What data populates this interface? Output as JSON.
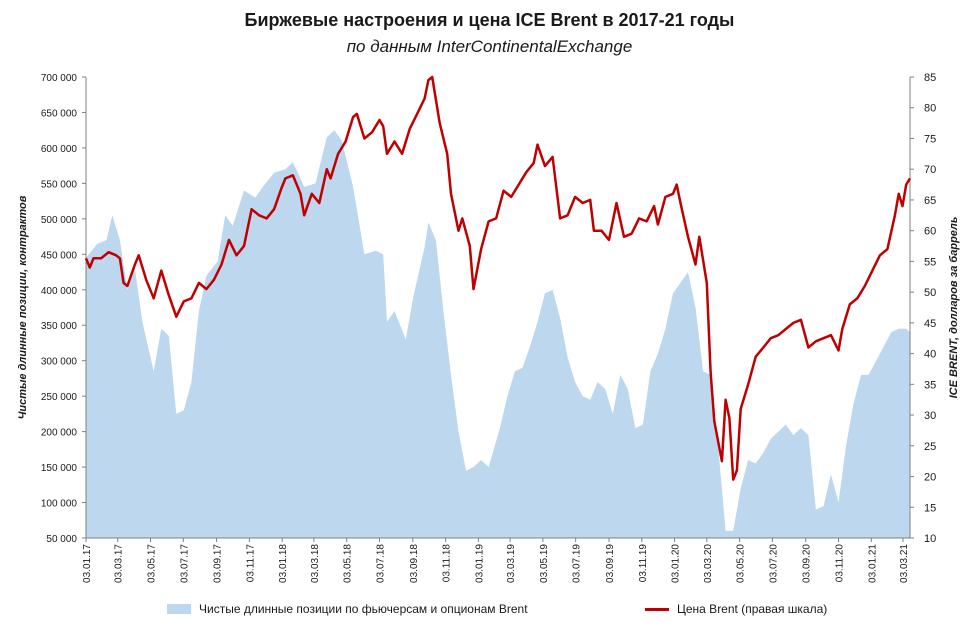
{
  "title": "Биржевые настроения и цена ICE Brent в 2017-21 годы",
  "subtitle": "по данным InterContinentalExchange",
  "chart_data": {
    "type": "area+line",
    "ylabel_left": "Чистые длинные позиции, контрактов",
    "ylabel_right": "ICE BRENT, долларов за баррель",
    "ylim_left": [
      50000,
      700000
    ],
    "yticks_left": [
      "50 000",
      "100 000",
      "150 000",
      "200 000",
      "250 000",
      "300 000",
      "350 000",
      "400 000",
      "450 000",
      "500 000",
      "550 000",
      "600 000",
      "650 000",
      "700 000"
    ],
    "ylim_right": [
      10,
      85
    ],
    "yticks_right": [
      "10",
      "15",
      "20",
      "25",
      "30",
      "35",
      "40",
      "45",
      "50",
      "55",
      "60",
      "65",
      "70",
      "75",
      "80",
      "85"
    ],
    "x_range": [
      "2017-01-03",
      "2021-03-16"
    ],
    "x_ticks": [
      "03.01.17",
      "03.03.17",
      "03.05.17",
      "03.07.17",
      "03.09.17",
      "03.11.17",
      "03.01.18",
      "03.03.18",
      "03.05.18",
      "03.07.18",
      "03.09.18",
      "03.11.18",
      "03.01.19",
      "03.03.19",
      "03.05.19",
      "03.07.19",
      "03.09.19",
      "03.11.19",
      "03.01.20",
      "03.03.20",
      "03.05.20",
      "03.07.20",
      "03.09.20",
      "03.11.20",
      "03.01.21",
      "03.03.21"
    ],
    "series": [
      {
        "name": "Чистые длинные позиции по фьючерсам и опционам Brent",
        "type": "area",
        "axis": "left",
        "color": "#bdd7ee",
        "points": [
          [
            "2017-01-03",
            445000
          ],
          [
            "2017-01-24",
            465000
          ],
          [
            "2017-02-10",
            470000
          ],
          [
            "2017-02-21",
            505000
          ],
          [
            "2017-03-07",
            470000
          ],
          [
            "2017-03-21",
            400000
          ],
          [
            "2017-04-04",
            430000
          ],
          [
            "2017-04-18",
            355000
          ],
          [
            "2017-05-09",
            285000
          ],
          [
            "2017-05-23",
            345000
          ],
          [
            "2017-06-06",
            335000
          ],
          [
            "2017-06-20",
            225000
          ],
          [
            "2017-07-04",
            230000
          ],
          [
            "2017-07-18",
            270000
          ],
          [
            "2017-08-01",
            370000
          ],
          [
            "2017-08-15",
            420000
          ],
          [
            "2017-09-05",
            440000
          ],
          [
            "2017-09-19",
            505000
          ],
          [
            "2017-10-03",
            490000
          ],
          [
            "2017-10-24",
            540000
          ],
          [
            "2017-11-14",
            530000
          ],
          [
            "2017-11-28",
            545000
          ],
          [
            "2017-12-19",
            565000
          ],
          [
            "2018-01-09",
            570000
          ],
          [
            "2018-01-23",
            580000
          ],
          [
            "2018-02-13",
            545000
          ],
          [
            "2018-03-06",
            550000
          ],
          [
            "2018-03-27",
            615000
          ],
          [
            "2018-04-10",
            625000
          ],
          [
            "2018-04-24",
            610000
          ],
          [
            "2018-05-15",
            545000
          ],
          [
            "2018-06-05",
            450000
          ],
          [
            "2018-06-26",
            455000
          ],
          [
            "2018-07-10",
            450000
          ],
          [
            "2018-07-17",
            355000
          ],
          [
            "2018-07-31",
            370000
          ],
          [
            "2018-08-21",
            330000
          ],
          [
            "2018-09-04",
            390000
          ],
          [
            "2018-09-25",
            460000
          ],
          [
            "2018-10-02",
            495000
          ],
          [
            "2018-10-16",
            470000
          ],
          [
            "2018-10-30",
            370000
          ],
          [
            "2018-11-13",
            280000
          ],
          [
            "2018-11-27",
            200000
          ],
          [
            "2018-12-11",
            145000
          ],
          [
            "2018-12-25",
            150000
          ],
          [
            "2019-01-08",
            160000
          ],
          [
            "2019-01-22",
            150000
          ],
          [
            "2019-02-12",
            205000
          ],
          [
            "2019-02-26",
            250000
          ],
          [
            "2019-03-12",
            285000
          ],
          [
            "2019-03-26",
            290000
          ],
          [
            "2019-04-09",
            320000
          ],
          [
            "2019-04-23",
            355000
          ],
          [
            "2019-05-07",
            395000
          ],
          [
            "2019-05-21",
            400000
          ],
          [
            "2019-06-04",
            360000
          ],
          [
            "2019-06-18",
            305000
          ],
          [
            "2019-07-02",
            270000
          ],
          [
            "2019-07-16",
            250000
          ],
          [
            "2019-07-30",
            245000
          ],
          [
            "2019-08-13",
            270000
          ],
          [
            "2019-08-27",
            260000
          ],
          [
            "2019-09-10",
            225000
          ],
          [
            "2019-09-24",
            280000
          ],
          [
            "2019-10-08",
            260000
          ],
          [
            "2019-10-22",
            205000
          ],
          [
            "2019-11-05",
            210000
          ],
          [
            "2019-11-19",
            285000
          ],
          [
            "2019-12-03",
            310000
          ],
          [
            "2019-12-17",
            345000
          ],
          [
            "2019-12-31",
            395000
          ],
          [
            "2020-01-14",
            410000
          ],
          [
            "2020-01-28",
            425000
          ],
          [
            "2020-02-11",
            375000
          ],
          [
            "2020-02-25",
            285000
          ],
          [
            "2020-03-10",
            280000
          ],
          [
            "2020-03-24",
            180000
          ],
          [
            "2020-04-07",
            60000
          ],
          [
            "2020-04-21",
            60000
          ],
          [
            "2020-05-05",
            120000
          ],
          [
            "2020-05-19",
            160000
          ],
          [
            "2020-06-02",
            155000
          ],
          [
            "2020-06-16",
            170000
          ],
          [
            "2020-06-30",
            190000
          ],
          [
            "2020-07-14",
            200000
          ],
          [
            "2020-07-28",
            210000
          ],
          [
            "2020-08-11",
            195000
          ],
          [
            "2020-08-25",
            205000
          ],
          [
            "2020-09-08",
            195000
          ],
          [
            "2020-09-22",
            90000
          ],
          [
            "2020-10-06",
            95000
          ],
          [
            "2020-10-20",
            140000
          ],
          [
            "2020-11-03",
            100000
          ],
          [
            "2020-11-17",
            180000
          ],
          [
            "2020-12-01",
            240000
          ],
          [
            "2020-12-15",
            280000
          ],
          [
            "2020-12-29",
            280000
          ],
          [
            "2021-01-12",
            300000
          ],
          [
            "2021-01-26",
            320000
          ],
          [
            "2021-02-09",
            340000
          ],
          [
            "2021-02-23",
            345000
          ],
          [
            "2021-03-09",
            345000
          ],
          [
            "2021-03-16",
            340000
          ]
        ]
      },
      {
        "name": "Цена Brent (правая шкала)",
        "type": "line",
        "axis": "right",
        "color": "#c00000",
        "points": [
          [
            "2017-01-03",
            55.5
          ],
          [
            "2017-01-10",
            54.0
          ],
          [
            "2017-01-17",
            55.5
          ],
          [
            "2017-01-31",
            55.5
          ],
          [
            "2017-02-14",
            56.5
          ],
          [
            "2017-02-28",
            56.0
          ],
          [
            "2017-03-07",
            55.5
          ],
          [
            "2017-03-14",
            51.5
          ],
          [
            "2017-03-21",
            51.0
          ],
          [
            "2017-04-04",
            54.5
          ],
          [
            "2017-04-11",
            56.0
          ],
          [
            "2017-04-25",
            52.0
          ],
          [
            "2017-05-09",
            49.0
          ],
          [
            "2017-05-23",
            53.5
          ],
          [
            "2017-06-06",
            49.5
          ],
          [
            "2017-06-20",
            46.0
          ],
          [
            "2017-07-04",
            48.5
          ],
          [
            "2017-07-18",
            49.0
          ],
          [
            "2017-08-01",
            51.5
          ],
          [
            "2017-08-15",
            50.5
          ],
          [
            "2017-08-29",
            52.0
          ],
          [
            "2017-09-12",
            54.5
          ],
          [
            "2017-09-26",
            58.5
          ],
          [
            "2017-10-10",
            56.0
          ],
          [
            "2017-10-24",
            57.5
          ],
          [
            "2017-11-07",
            63.5
          ],
          [
            "2017-11-21",
            62.5
          ],
          [
            "2017-12-05",
            62.0
          ],
          [
            "2017-12-19",
            63.5
          ],
          [
            "2018-01-02",
            67.0
          ],
          [
            "2018-01-09",
            68.5
          ],
          [
            "2018-01-23",
            69.0
          ],
          [
            "2018-02-06",
            66.0
          ],
          [
            "2018-02-13",
            62.5
          ],
          [
            "2018-02-27",
            66.0
          ],
          [
            "2018-03-13",
            64.5
          ],
          [
            "2018-03-27",
            70.0
          ],
          [
            "2018-04-03",
            68.5
          ],
          [
            "2018-04-17",
            72.5
          ],
          [
            "2018-05-01",
            74.5
          ],
          [
            "2018-05-15",
            78.5
          ],
          [
            "2018-05-22",
            79.0
          ],
          [
            "2018-06-05",
            75.0
          ],
          [
            "2018-06-19",
            76.0
          ],
          [
            "2018-07-03",
            78.0
          ],
          [
            "2018-07-10",
            77.0
          ],
          [
            "2018-07-17",
            72.5
          ],
          [
            "2018-07-31",
            74.5
          ],
          [
            "2018-08-14",
            72.5
          ],
          [
            "2018-08-28",
            76.5
          ],
          [
            "2018-09-11",
            79.0
          ],
          [
            "2018-09-25",
            81.5
          ],
          [
            "2018-10-02",
            84.5
          ],
          [
            "2018-10-09",
            85.0
          ],
          [
            "2018-10-23",
            77.5
          ],
          [
            "2018-11-06",
            72.5
          ],
          [
            "2018-11-13",
            66.0
          ],
          [
            "2018-11-27",
            60.0
          ],
          [
            "2018-12-04",
            62.0
          ],
          [
            "2018-12-18",
            57.5
          ],
          [
            "2018-12-25",
            50.5
          ],
          [
            "2019-01-08",
            57.0
          ],
          [
            "2019-01-22",
            61.5
          ],
          [
            "2019-02-05",
            62.0
          ],
          [
            "2019-02-19",
            66.5
          ],
          [
            "2019-03-05",
            65.5
          ],
          [
            "2019-03-19",
            67.5
          ],
          [
            "2019-04-02",
            69.5
          ],
          [
            "2019-04-16",
            71.0
          ],
          [
            "2019-04-23",
            74.0
          ],
          [
            "2019-05-07",
            70.5
          ],
          [
            "2019-05-21",
            72.0
          ],
          [
            "2019-06-04",
            62.0
          ],
          [
            "2019-06-18",
            62.5
          ],
          [
            "2019-07-02",
            65.5
          ],
          [
            "2019-07-16",
            64.5
          ],
          [
            "2019-07-30",
            65.0
          ],
          [
            "2019-08-06",
            60.0
          ],
          [
            "2019-08-20",
            60.0
          ],
          [
            "2019-09-03",
            58.5
          ],
          [
            "2019-09-17",
            64.5
          ],
          [
            "2019-10-01",
            59.0
          ],
          [
            "2019-10-15",
            59.5
          ],
          [
            "2019-10-29",
            62.0
          ],
          [
            "2019-11-12",
            61.5
          ],
          [
            "2019-11-26",
            64.0
          ],
          [
            "2019-12-03",
            61.0
          ],
          [
            "2019-12-17",
            65.5
          ],
          [
            "2019-12-31",
            66.0
          ],
          [
            "2020-01-07",
            67.5
          ],
          [
            "2020-01-14",
            64.5
          ],
          [
            "2020-01-28",
            59.0
          ],
          [
            "2020-02-11",
            54.5
          ],
          [
            "2020-02-18",
            59.0
          ],
          [
            "2020-03-03",
            51.5
          ],
          [
            "2020-03-10",
            37.0
          ],
          [
            "2020-03-17",
            29.0
          ],
          [
            "2020-03-31",
            22.5
          ],
          [
            "2020-04-07",
            32.5
          ],
          [
            "2020-04-14",
            29.5
          ],
          [
            "2020-04-21",
            19.5
          ],
          [
            "2020-04-28",
            21.0
          ],
          [
            "2020-05-05",
            31.0
          ],
          [
            "2020-05-19",
            35.0
          ],
          [
            "2020-06-02",
            39.5
          ],
          [
            "2020-06-16",
            41.0
          ],
          [
            "2020-06-30",
            42.5
          ],
          [
            "2020-07-14",
            43.0
          ],
          [
            "2020-07-28",
            44.0
          ],
          [
            "2020-08-11",
            45.0
          ],
          [
            "2020-08-25",
            45.5
          ],
          [
            "2020-09-08",
            41.0
          ],
          [
            "2020-09-22",
            42.0
          ],
          [
            "2020-10-06",
            42.5
          ],
          [
            "2020-10-20",
            43.0
          ],
          [
            "2020-11-03",
            40.5
          ],
          [
            "2020-11-10",
            44.0
          ],
          [
            "2020-11-24",
            48.0
          ],
          [
            "2020-12-08",
            49.0
          ],
          [
            "2020-12-22",
            51.0
          ],
          [
            "2021-01-05",
            53.5
          ],
          [
            "2021-01-19",
            56.0
          ],
          [
            "2021-02-02",
            57.0
          ],
          [
            "2021-02-16",
            62.5
          ],
          [
            "2021-02-23",
            66.0
          ],
          [
            "2021-03-02",
            64.0
          ],
          [
            "2021-03-09",
            67.5
          ],
          [
            "2021-03-16",
            68.5
          ]
        ]
      }
    ]
  }
}
